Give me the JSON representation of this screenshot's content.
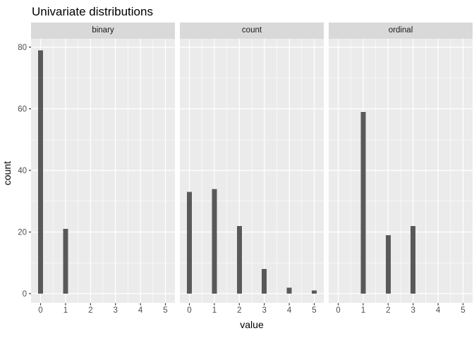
{
  "chart_data": {
    "type": "bar",
    "title": "Univariate distributions",
    "xlabel": "value",
    "ylabel": "count",
    "x_ticks": [
      0,
      1,
      2,
      3,
      4,
      5
    ],
    "y_ticks": [
      0,
      20,
      40,
      60,
      80
    ],
    "ylim": [
      0,
      80
    ],
    "xlim": [
      0,
      5
    ],
    "grid": true,
    "legend": "none",
    "facet_labels": [
      "binary",
      "count",
      "ordinal"
    ],
    "facets": [
      {
        "label": "binary",
        "points": [
          {
            "x": 0,
            "count": 79
          },
          {
            "x": 1,
            "count": 21
          }
        ]
      },
      {
        "label": "count",
        "points": [
          {
            "x": 0,
            "count": 33
          },
          {
            "x": 1,
            "count": 34
          },
          {
            "x": 2,
            "count": 22
          },
          {
            "x": 3,
            "count": 8
          },
          {
            "x": 4,
            "count": 2
          },
          {
            "x": 5,
            "count": 1
          }
        ]
      },
      {
        "label": "ordinal",
        "points": [
          {
            "x": 1,
            "count": 59
          },
          {
            "x": 2,
            "count": 19
          },
          {
            "x": 3,
            "count": 22
          }
        ]
      }
    ],
    "colors": {
      "bar": "#595959",
      "panel_background": "#EBEBEB",
      "strip_background": "#D9D9D9",
      "grid_line": "#FFFFFF",
      "axis_text": "#4D4D4D",
      "tick_mark": "#333333",
      "strip_text": "#1A1A1A",
      "title_text": "#000000",
      "axis_title_text": "#000000",
      "page_background": "#FFFFFF"
    }
  }
}
